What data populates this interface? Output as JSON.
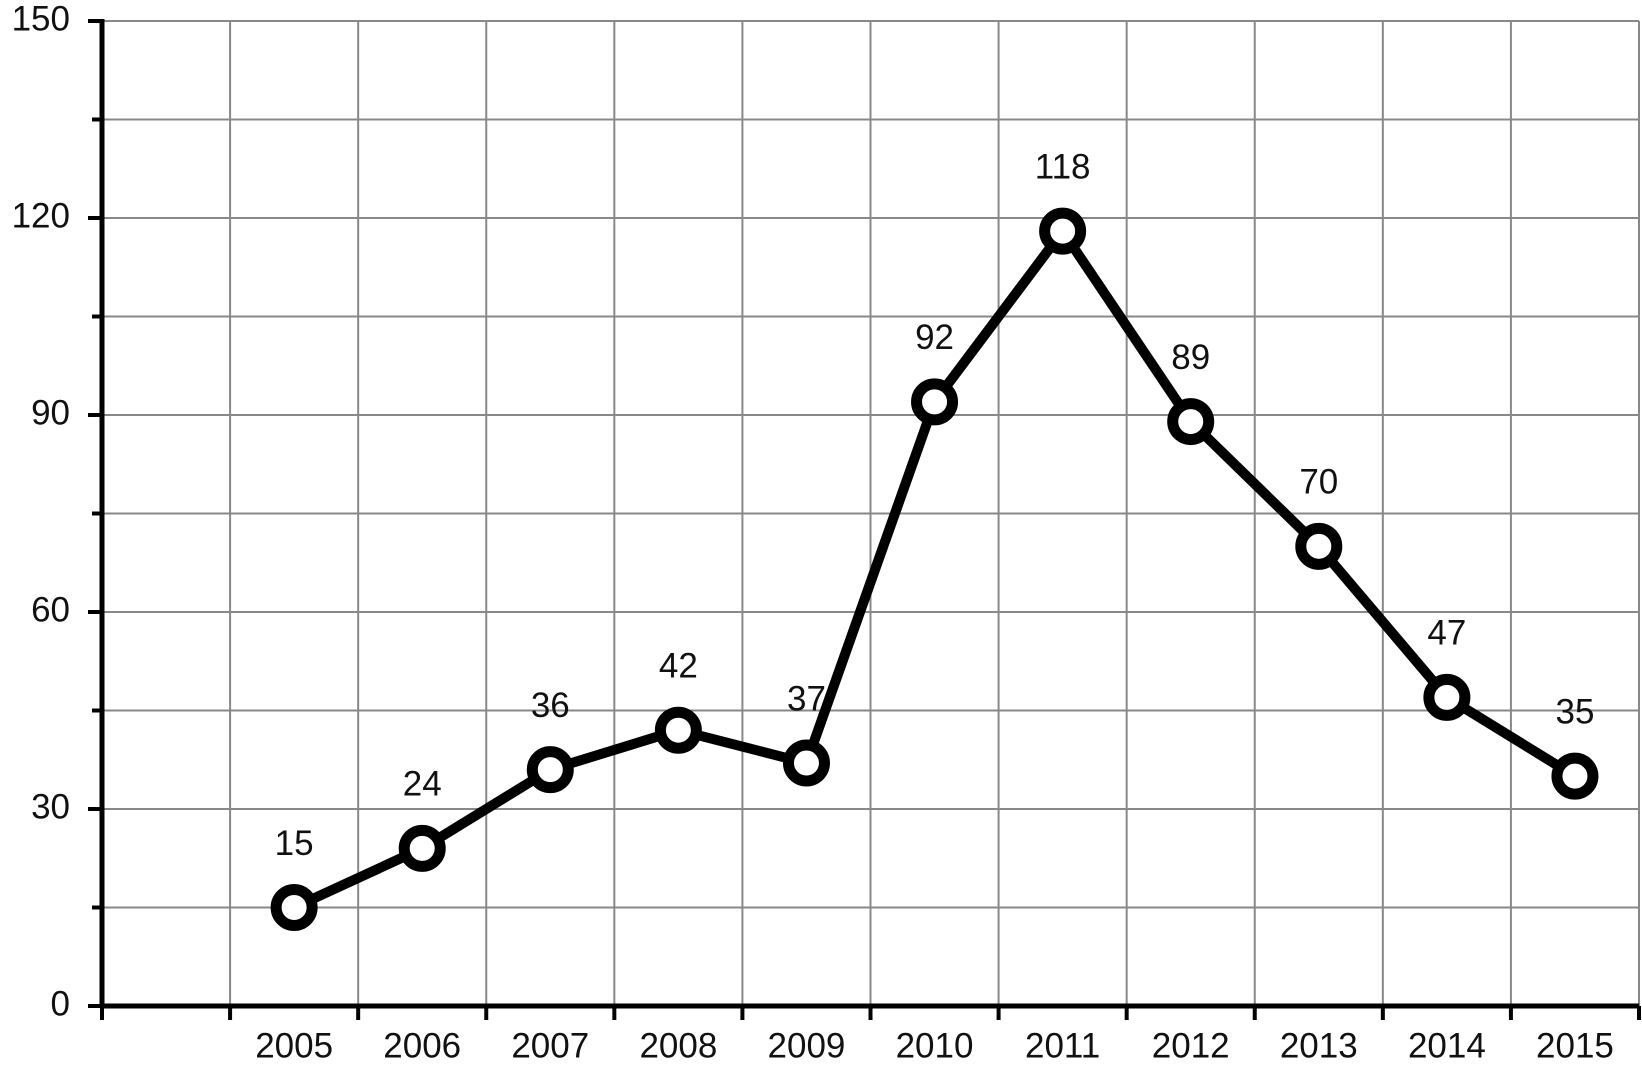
{
  "chart_data": {
    "type": "line",
    "categories": [
      null,
      "2005",
      "2006",
      "2007",
      "2008",
      "2009",
      "2010",
      "2011",
      "2012",
      "2013",
      "2014",
      "2015"
    ],
    "values": [
      null,
      15,
      24,
      36,
      42,
      37,
      92,
      118,
      89,
      70,
      47,
      35
    ],
    "color": "#000000",
    "ylim": [
      0,
      150
    ],
    "yticks": [
      0,
      30,
      60,
      90,
      120,
      150
    ],
    "y_minor_ticks": [
      15,
      45,
      75,
      105,
      135
    ],
    "grid": true,
    "data_labels": true
  }
}
